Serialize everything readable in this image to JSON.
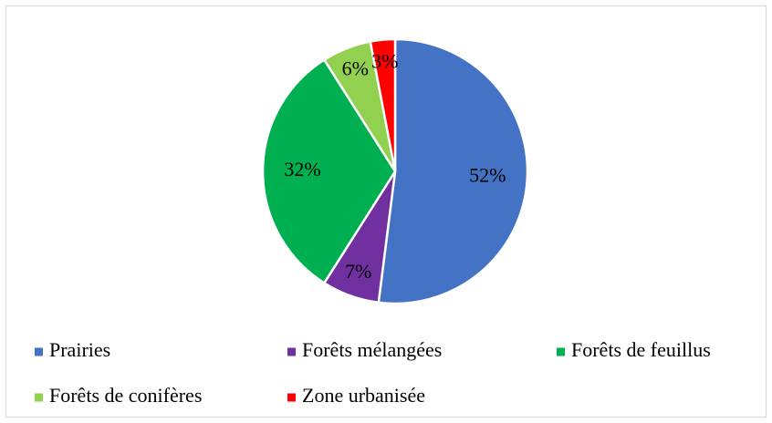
{
  "chart_data": {
    "type": "pie",
    "categories": [
      "Prairies",
      "Forêts mélangées",
      "Forêts de feuillus",
      "Forêts de conifères",
      "Zone urbanisée"
    ],
    "values": [
      52,
      7,
      32,
      6,
      3
    ],
    "value_labels": [
      "52%",
      "7%",
      "32%",
      "6%",
      "3%"
    ],
    "colors": [
      "#4472c4",
      "#7030a0",
      "#00b050",
      "#92d050",
      "#ff0000"
    ],
    "legend": "bottom"
  }
}
